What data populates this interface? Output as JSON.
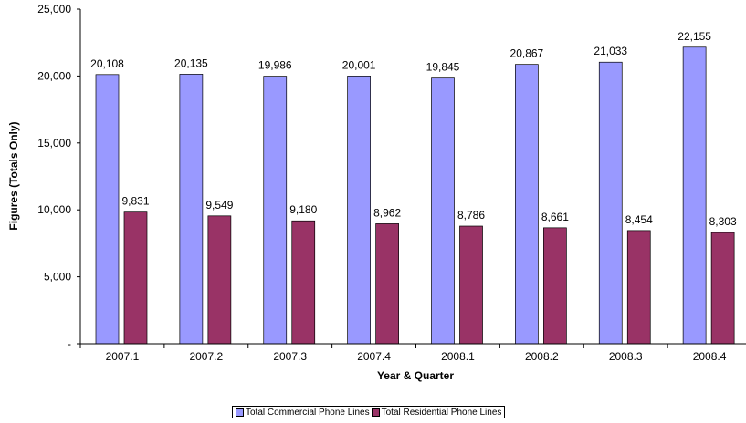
{
  "chart_data": {
    "type": "bar",
    "xlabel": "Year & Quarter",
    "ylabel": "Figures (Totals Only)",
    "ylim": [
      0,
      25000
    ],
    "y_ticks": [
      "-",
      "5,000",
      "10,000",
      "15,000",
      "20,000",
      "25,000"
    ],
    "categories": [
      "2007.1",
      "2007.2",
      "2007.3",
      "2007.4",
      "2008.1",
      "2008.2",
      "2008.3",
      "2008.4"
    ],
    "series": [
      {
        "name": "Total Commercial Phone Lines",
        "color": "#9999ff",
        "values": [
          20108,
          20135,
          19986,
          20001,
          19845,
          20867,
          21033,
          22155
        ],
        "labels": [
          "20,108",
          "20,135",
          "19,986",
          "20,001",
          "19,845",
          "20,867",
          "21,033",
          "22,155"
        ]
      },
      {
        "name": "Total Residential Phone Lines",
        "color": "#993366",
        "values": [
          9831,
          9549,
          9180,
          8962,
          8786,
          8661,
          8454,
          8303
        ],
        "labels": [
          "9,831",
          "9,549",
          "9,180",
          "8,962",
          "8,786",
          "8,661",
          "8,454",
          "8,303"
        ]
      }
    ],
    "grid": false,
    "legend_position": "bottom"
  }
}
